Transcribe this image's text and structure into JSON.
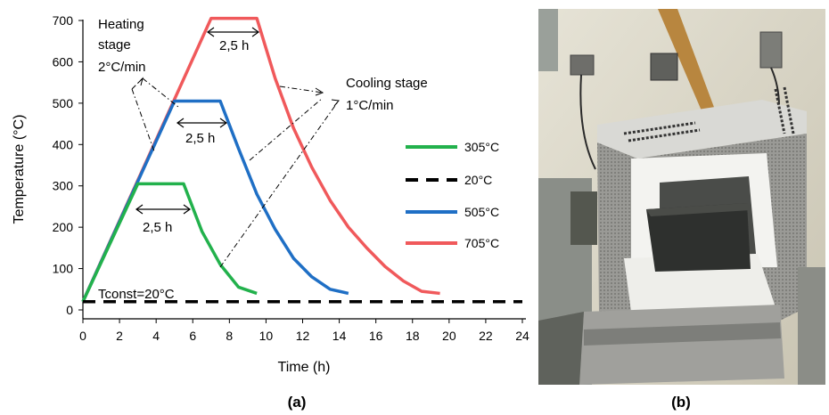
{
  "chart_data": {
    "type": "line",
    "xlabel": "Time (h)",
    "ylabel": "Temperature (°C)",
    "xlim": [
      0,
      24
    ],
    "ylim": [
      0,
      700
    ],
    "xticks": [
      "0",
      "2",
      "4",
      "6",
      "8",
      "10",
      "12",
      "14",
      "16",
      "18",
      "20",
      "22",
      "24"
    ],
    "yticks": [
      "0",
      "100",
      "200",
      "300",
      "400",
      "500",
      "600",
      "700"
    ],
    "grid": false,
    "legend_position": "right",
    "series": [
      {
        "name": "305°C",
        "color": "#22b14c",
        "style": "solid",
        "x": [
          0,
          3.0,
          5.5,
          6.5,
          7.5,
          8.5,
          9.5
        ],
        "y": [
          20,
          305,
          305,
          190,
          110,
          55,
          40
        ]
      },
      {
        "name": "20°C",
        "color": "#000000",
        "style": "dashed",
        "x": [
          0,
          24
        ],
        "y": [
          20,
          20
        ]
      },
      {
        "name": "505°C",
        "color": "#1f6fc5",
        "style": "solid",
        "x": [
          0,
          5.0,
          7.5,
          8.5,
          9.5,
          10.5,
          11.5,
          12.5,
          13.5,
          14.5
        ],
        "y": [
          20,
          505,
          505,
          390,
          280,
          195,
          125,
          80,
          50,
          40
        ]
      },
      {
        "name": "705°C",
        "color": "#f0595b",
        "style": "solid",
        "x": [
          0,
          7.0,
          9.5,
          10.5,
          11.5,
          12.5,
          13.5,
          14.5,
          15.5,
          16.5,
          17.5,
          18.5,
          19.5
        ],
        "y": [
          20,
          705,
          705,
          560,
          440,
          345,
          265,
          200,
          150,
          105,
          70,
          45,
          40
        ]
      }
    ],
    "annotations": {
      "heating_line1": "Heating",
      "heating_line2": "stage",
      "heating_rate": "2°C/min",
      "cooling_line1": "Cooling stage",
      "cooling_rate": "1°C/min",
      "hold_label_705": "2,5 h",
      "hold_label_505": "2,5 h",
      "hold_label_305": "2,5 h",
      "tconst": "Tconst=20°C"
    }
  },
  "panels": {
    "a_label": "(a)",
    "b_label": "(b)"
  },
  "photo": {
    "description_hidden": "",
    "colors": {
      "wall": "#d8d4c6",
      "furnace_body": "#8f8f8c",
      "insulation": "#f2f2ef",
      "tray": "#2e302e"
    }
  }
}
